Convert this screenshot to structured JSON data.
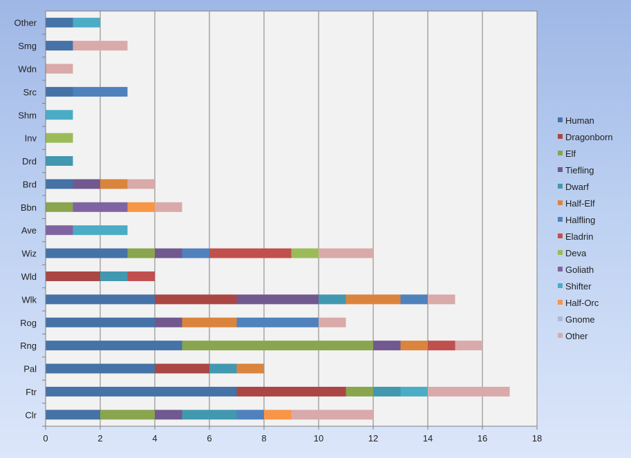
{
  "chart_data": {
    "type": "bar",
    "orientation": "horizontal",
    "stacked": true,
    "title": "",
    "xlabel": "",
    "ylabel": "",
    "xlim": [
      0,
      18
    ],
    "x_ticks": [
      "0",
      "2",
      "4",
      "6",
      "8",
      "10",
      "12",
      "14",
      "16",
      "18"
    ],
    "grid": true,
    "legend_position": "right",
    "categories": [
      "Clr",
      "Ftr",
      "Pal",
      "Rng",
      "Rog",
      "Wlk",
      "Wld",
      "Wiz",
      "Ave",
      "Bbn",
      "Brd",
      "Drd",
      "Inv",
      "Shm",
      "Src",
      "Wdn",
      "Smg",
      "Other"
    ],
    "series": [
      {
        "name": "Human",
        "color": "#4572a7",
        "values": [
          2,
          7,
          4,
          5,
          4,
          4,
          0,
          3,
          0,
          0,
          1,
          0,
          0,
          0,
          1,
          0,
          1,
          1
        ]
      },
      {
        "name": "Dragonborn",
        "color": "#aa4643",
        "values": [
          0,
          4,
          2,
          0,
          0,
          3,
          2,
          0,
          0,
          0,
          0,
          0,
          0,
          0,
          0,
          0,
          0,
          0
        ]
      },
      {
        "name": "Elf",
        "color": "#89a54e",
        "values": [
          2,
          1,
          0,
          7,
          0,
          0,
          0,
          1,
          0,
          1,
          0,
          0,
          0,
          0,
          0,
          0,
          0,
          0
        ]
      },
      {
        "name": "Tiefling",
        "color": "#71588f",
        "values": [
          1,
          0,
          0,
          1,
          1,
          3,
          0,
          1,
          0,
          0,
          1,
          0,
          0,
          0,
          0,
          0,
          0,
          0
        ]
      },
      {
        "name": "Dwarf",
        "color": "#4198af",
        "values": [
          2,
          1,
          1,
          0,
          0,
          1,
          1,
          0,
          0,
          0,
          0,
          1,
          0,
          0,
          0,
          0,
          0,
          0
        ]
      },
      {
        "name": "Half-Elf",
        "color": "#db843d",
        "values": [
          0,
          0,
          1,
          1,
          2,
          2,
          0,
          0,
          0,
          0,
          1,
          0,
          0,
          0,
          0,
          0,
          0,
          0
        ]
      },
      {
        "name": "Halfling",
        "color": "#4f81bd",
        "values": [
          1,
          0,
          0,
          0,
          3,
          1,
          0,
          1,
          0,
          0,
          0,
          0,
          0,
          0,
          2,
          0,
          0,
          0
        ]
      },
      {
        "name": "Eladrin",
        "color": "#c0504d",
        "values": [
          0,
          0,
          0,
          1,
          0,
          0,
          1,
          3,
          0,
          0,
          0,
          0,
          0,
          0,
          0,
          0,
          0,
          0
        ]
      },
      {
        "name": "Deva",
        "color": "#9bbb59",
        "values": [
          0,
          0,
          0,
          0,
          0,
          0,
          0,
          1,
          0,
          0,
          0,
          0,
          1,
          0,
          0,
          0,
          0,
          0
        ]
      },
      {
        "name": "Goliath",
        "color": "#8064a2",
        "values": [
          0,
          0,
          0,
          0,
          0,
          0,
          0,
          0,
          1,
          2,
          0,
          0,
          0,
          0,
          0,
          0,
          0,
          0
        ]
      },
      {
        "name": "Shifter",
        "color": "#4bacc6",
        "values": [
          0,
          1,
          0,
          0,
          0,
          0,
          0,
          0,
          2,
          0,
          0,
          0,
          0,
          1,
          0,
          0,
          0,
          1
        ]
      },
      {
        "name": "Half-Orc",
        "color": "#f79646",
        "values": [
          1,
          0,
          0,
          0,
          0,
          0,
          0,
          0,
          0,
          1,
          0,
          0,
          0,
          0,
          0,
          0,
          0,
          0
        ]
      },
      {
        "name": "Gnome",
        "color": "#aabad7",
        "values": [
          0,
          0,
          0,
          0,
          0,
          0,
          0,
          0,
          0,
          0,
          0,
          0,
          0,
          0,
          0,
          0,
          0,
          0
        ]
      },
      {
        "name": "Other",
        "color": "#d9aaa9",
        "values": [
          3,
          3,
          0,
          1,
          1,
          1,
          0,
          2,
          0,
          1,
          1,
          0,
          0,
          0,
          0,
          1,
          2,
          0
        ]
      }
    ]
  }
}
